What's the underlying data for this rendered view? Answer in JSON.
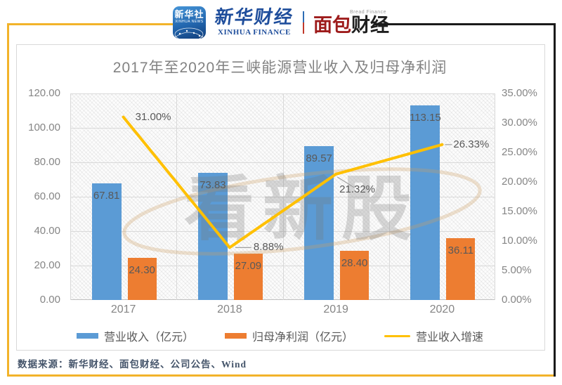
{
  "header": {
    "xinhua_app": {
      "title": "新华社",
      "subtitle": "XINHUA NEWS"
    },
    "xinhua_finance": {
      "title": "新华财经",
      "subtitle": "XINHUA FINANCE"
    },
    "bread_finance": {
      "title_left": "面包",
      "title_right": "财经",
      "subtitle": "Bread Finance"
    }
  },
  "chart_data": {
    "type": "combo-bar-line",
    "title": "2017年至2020年三峡能源营业收入及归母净利润",
    "categories": [
      "2017",
      "2018",
      "2019",
      "2020"
    ],
    "series": [
      {
        "name": "营业收入（亿元）",
        "type": "bar",
        "axis": "left",
        "color": "#5B9BD5",
        "values": [
          67.81,
          73.83,
          89.57,
          113.15
        ],
        "labels": [
          "67.81",
          "73.83",
          "89.57",
          "113.15"
        ]
      },
      {
        "name": "归母净利润（亿元）",
        "type": "bar",
        "axis": "left",
        "color": "#ED7D31",
        "values": [
          24.3,
          27.09,
          28.4,
          36.11
        ],
        "labels": [
          "24.30",
          "27.09",
          "28.40",
          "36.11"
        ]
      },
      {
        "name": "营业收入增速",
        "type": "line",
        "axis": "right",
        "color": "#FFC000",
        "values": [
          31.0,
          8.88,
          21.32,
          26.33
        ],
        "labels": [
          "31.00%",
          "8.88%",
          "21.32%",
          "26.33%"
        ]
      }
    ],
    "left_axis": {
      "min": 0,
      "max": 120,
      "tick_labels": [
        "120.00",
        "100.00",
        "80.00",
        "60.00",
        "40.00",
        "20.00",
        "0.00"
      ]
    },
    "right_axis": {
      "min": 0,
      "max": 35,
      "tick_labels": [
        "35.00%",
        "30.00%",
        "25.00%",
        "20.00%",
        "15.00%",
        "10.00%",
        "5.00%",
        "0.00%"
      ]
    },
    "grid": "on",
    "legend_position": "bottom",
    "plot_background": "hatched"
  },
  "watermark": "看新股",
  "footer": {
    "source": "数据来源：新华财经、面包财经、公司公告、Wind"
  },
  "colors": {
    "bar_revenue": "#5B9BD5",
    "bar_profit": "#ED7D31",
    "line_growth": "#FFC000",
    "frame_yellow": "#F2B32A",
    "frame_dark": "#1A1A1A",
    "axis_text": "#858585",
    "label_text": "#595959",
    "footer_text": "#44546A"
  }
}
